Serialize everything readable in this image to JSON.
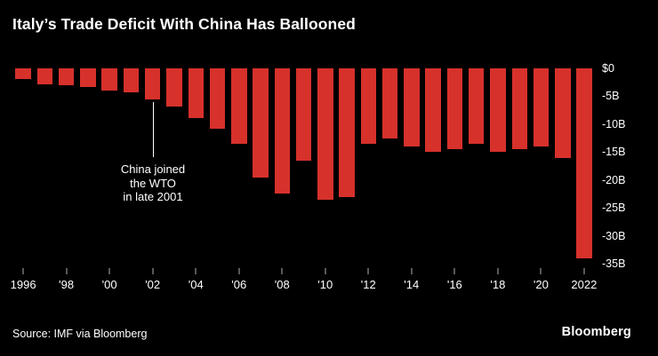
{
  "title": "Italy’s Trade Deficit With China Has Ballooned",
  "source": "Source: IMF via Bloomberg",
  "brand": "Bloomberg",
  "annotation": {
    "lines": [
      "China joined",
      "the WTO",
      "in late 2001"
    ],
    "full_text": "China joined the WTO in late 2001"
  },
  "colors": {
    "background": "#000000",
    "bar": "#d7312b",
    "text": "#ffffff"
  },
  "chart_data": {
    "type": "bar",
    "title": "Italy’s Trade Deficit With China Has Ballooned",
    "xlabel": "",
    "ylabel": "",
    "unit": "USD billions",
    "ylim": [
      -35,
      0
    ],
    "grid": false,
    "x": [
      1996,
      1997,
      1998,
      1999,
      2000,
      2001,
      2002,
      2003,
      2004,
      2005,
      2006,
      2007,
      2008,
      2009,
      2010,
      2011,
      2012,
      2013,
      2014,
      2015,
      2016,
      2017,
      2018,
      2019,
      2020,
      2021,
      2022
    ],
    "values": [
      -1.9,
      -2.8,
      -3.1,
      -3.3,
      -4.0,
      -4.3,
      -5.5,
      -6.8,
      -8.9,
      -10.8,
      -13.5,
      -19.5,
      -22.5,
      -16.5,
      -23.5,
      -23.0,
      -13.5,
      -12.5,
      -14.0,
      -15.0,
      -14.5,
      -13.5,
      -15.0,
      -14.5,
      -14.0,
      -16.0,
      -34.0
    ],
    "y_ticks": [
      "$0",
      "-5B",
      "-10B",
      "-15B",
      "-20B",
      "-25B",
      "-30B",
      "-35B"
    ],
    "y_tick_values": [
      0,
      -5,
      -10,
      -15,
      -20,
      -25,
      -30,
      -35
    ],
    "x_tick_labels": [
      "1996",
      "'98",
      "'00",
      "'02",
      "'04",
      "'06",
      "'08",
      "'10",
      "'12",
      "'14",
      "'16",
      "'18",
      "'20",
      "2022"
    ],
    "x_tick_indices": [
      0,
      2,
      4,
      6,
      8,
      10,
      12,
      14,
      16,
      18,
      20,
      22,
      24,
      26
    ],
    "annotation": {
      "text": "China joined the WTO in late 2001",
      "x_year": 2002
    }
  }
}
